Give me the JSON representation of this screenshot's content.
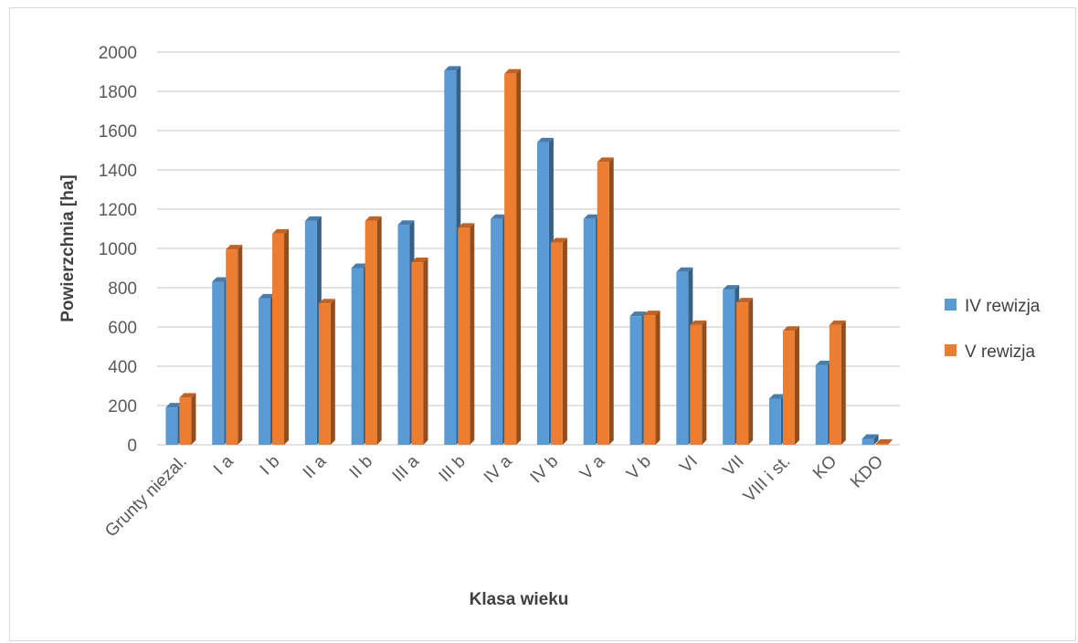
{
  "chart_data": {
    "type": "bar",
    "title": "",
    "xlabel": "Klasa wieku",
    "ylabel": "Powierzchnia [ha]",
    "ylim": [
      0,
      2000
    ],
    "yticks": [
      0,
      200,
      400,
      600,
      800,
      1000,
      1200,
      1400,
      1600,
      1800,
      2000
    ],
    "grid": true,
    "legend_position": "right",
    "categories": [
      "Grunty niezal.",
      "I a",
      "I b",
      "II a",
      "II b",
      "III a",
      "III b",
      "IV a",
      "IV b",
      "V a",
      "V b",
      "VI",
      "VII",
      "VIII i st.",
      "KO",
      "KDO"
    ],
    "series": [
      {
        "name": "IV rewizja",
        "color": "#5b9bd5",
        "values": [
          190,
          830,
          745,
          1140,
          900,
          1120,
          1905,
          1150,
          1540,
          1150,
          655,
          880,
          790,
          235,
          405,
          30
        ]
      },
      {
        "name": "V rewizja",
        "color": "#ed7d31",
        "values": [
          240,
          995,
          1075,
          720,
          1140,
          930,
          1105,
          1890,
          1030,
          1440,
          660,
          610,
          725,
          580,
          610,
          5
        ]
      }
    ]
  }
}
